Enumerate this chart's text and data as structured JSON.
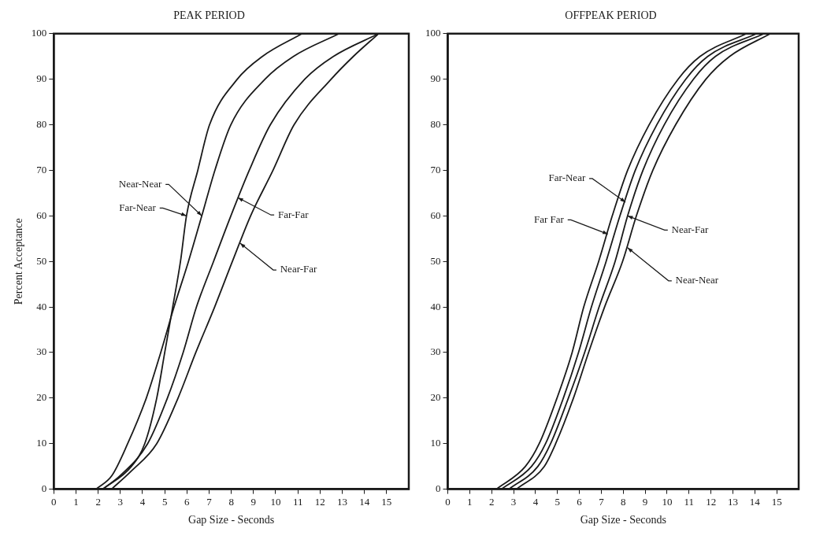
{
  "chart_data": [
    {
      "type": "line",
      "title": "PEAK PERIOD",
      "xlabel": "Gap Size - Seconds",
      "ylabel": "Percent Acceptance",
      "xlim": [
        0,
        16
      ],
      "ylim": [
        0,
        100
      ],
      "xticks": [
        0,
        1,
        2,
        3,
        4,
        5,
        6,
        7,
        8,
        9,
        10,
        11,
        12,
        13,
        14,
        15
      ],
      "yticks": [
        0,
        10,
        20,
        30,
        40,
        50,
        60,
        70,
        80,
        90,
        100
      ],
      "grid": false,
      "legend": false,
      "marker": "none",
      "line_style": "solid",
      "series": [
        {
          "color": "#1a1a1a",
          "x": [
            1.9,
            2.62,
            3.33,
            4.17,
            4.82,
            5.42,
            6.07,
            6.67,
            7.26,
            7.98,
            9.52,
            10.8,
            12.86
          ],
          "values": [
            0,
            3,
            10,
            20,
            30,
            40,
            50,
            60,
            70,
            80,
            90,
            95,
            100
          ]
        },
        {
          "color": "#1a1a1a",
          "x": [
            2.2,
            3.5,
            4.1,
            4.64,
            5.0,
            5.36,
            5.71,
            5.98,
            6.49,
            7.02,
            8.27,
            9.4,
            11.19
          ],
          "values": [
            0,
            5,
            10,
            20,
            30,
            40,
            50,
            60,
            70,
            80,
            90,
            95,
            100
          ]
        },
        {
          "color": "#1a1a1a",
          "x": [
            2.2,
            3.0,
            4.23,
            5.12,
            5.83,
            6.43,
            7.2,
            7.98,
            8.81,
            9.76,
            11.31,
            12.6,
            14.64
          ],
          "values": [
            0,
            3,
            10,
            20,
            30,
            40,
            50,
            60,
            70,
            80,
            90,
            95,
            100
          ]
        },
        {
          "color": "#1a1a1a",
          "x": [
            2.6,
            3.5,
            4.64,
            5.6,
            6.4,
            7.25,
            8.05,
            8.87,
            9.88,
            10.83,
            12.5,
            13.5,
            14.64
          ],
          "values": [
            0,
            4,
            10,
            20,
            30,
            40,
            50,
            60,
            70,
            80,
            90,
            95,
            100
          ]
        }
      ],
      "annotations": [
        {
          "text": "Near-Near",
          "x": 6.67,
          "y": 60
        },
        {
          "text": "Far-Near",
          "x": 5.98,
          "y": 60
        },
        {
          "text": "Far-Far",
          "x": 8.3,
          "y": 64
        },
        {
          "text": "Near-Far",
          "x": 8.4,
          "y": 54
        }
      ]
    },
    {
      "type": "line",
      "title": "OFFPEAK PERIOD",
      "xlabel": "Gap Size - Seconds",
      "xlim": [
        0,
        16
      ],
      "ylim": [
        0,
        100
      ],
      "xticks": [
        0,
        1,
        2,
        3,
        4,
        5,
        6,
        7,
        8,
        9,
        10,
        11,
        12,
        13,
        14,
        15
      ],
      "yticks": [
        0,
        10,
        20,
        30,
        40,
        50,
        60,
        70,
        80,
        90,
        100
      ],
      "grid": false,
      "legend": false,
      "marker": "none",
      "line_style": "solid",
      "series": [
        {
          "color": "#1a1a1a",
          "x": [
            2.21,
            3.54,
            4.17,
            4.98,
            5.67,
            6.2,
            6.88,
            7.5,
            8.2,
            9.18,
            10.5,
            11.5,
            13.62
          ],
          "values": [
            0,
            5,
            10,
            20,
            30,
            40,
            50,
            60,
            70,
            80,
            90,
            95,
            100
          ]
        },
        {
          "color": "#1a1a1a",
          "x": [
            2.44,
            3.82,
            4.46,
            5.27,
            5.96,
            6.55,
            7.22,
            7.85,
            8.55,
            9.53,
            10.85,
            11.85,
            14.08
          ],
          "values": [
            0,
            5,
            10,
            20,
            30,
            40,
            50,
            60,
            70,
            80,
            90,
            95,
            100
          ]
        },
        {
          "color": "#1a1a1a",
          "x": [
            2.79,
            4.11,
            4.69,
            5.5,
            6.24,
            6.9,
            7.63,
            8.2,
            8.9,
            9.87,
            11.2,
            12.2,
            14.42
          ],
          "values": [
            0,
            5,
            10,
            20,
            30,
            40,
            50,
            60,
            70,
            80,
            90,
            95,
            100
          ]
        },
        {
          "color": "#1a1a1a",
          "x": [
            3.13,
            4.4,
            4.92,
            5.73,
            6.42,
            7.15,
            7.97,
            8.6,
            9.35,
            10.39,
            11.77,
            12.85,
            14.71
          ],
          "values": [
            0,
            5,
            10,
            20,
            30,
            40,
            50,
            60,
            70,
            80,
            90,
            95,
            100
          ]
        }
      ],
      "annotations": [
        {
          "text": "Far-Near",
          "x": 8.1,
          "y": 63
        },
        {
          "text": "Far Far",
          "x": 7.3,
          "y": 56
        },
        {
          "text": "Near-Far",
          "x": 8.2,
          "y": 60
        },
        {
          "text": "Near-Near",
          "x": 8.2,
          "y": 53
        }
      ]
    }
  ]
}
